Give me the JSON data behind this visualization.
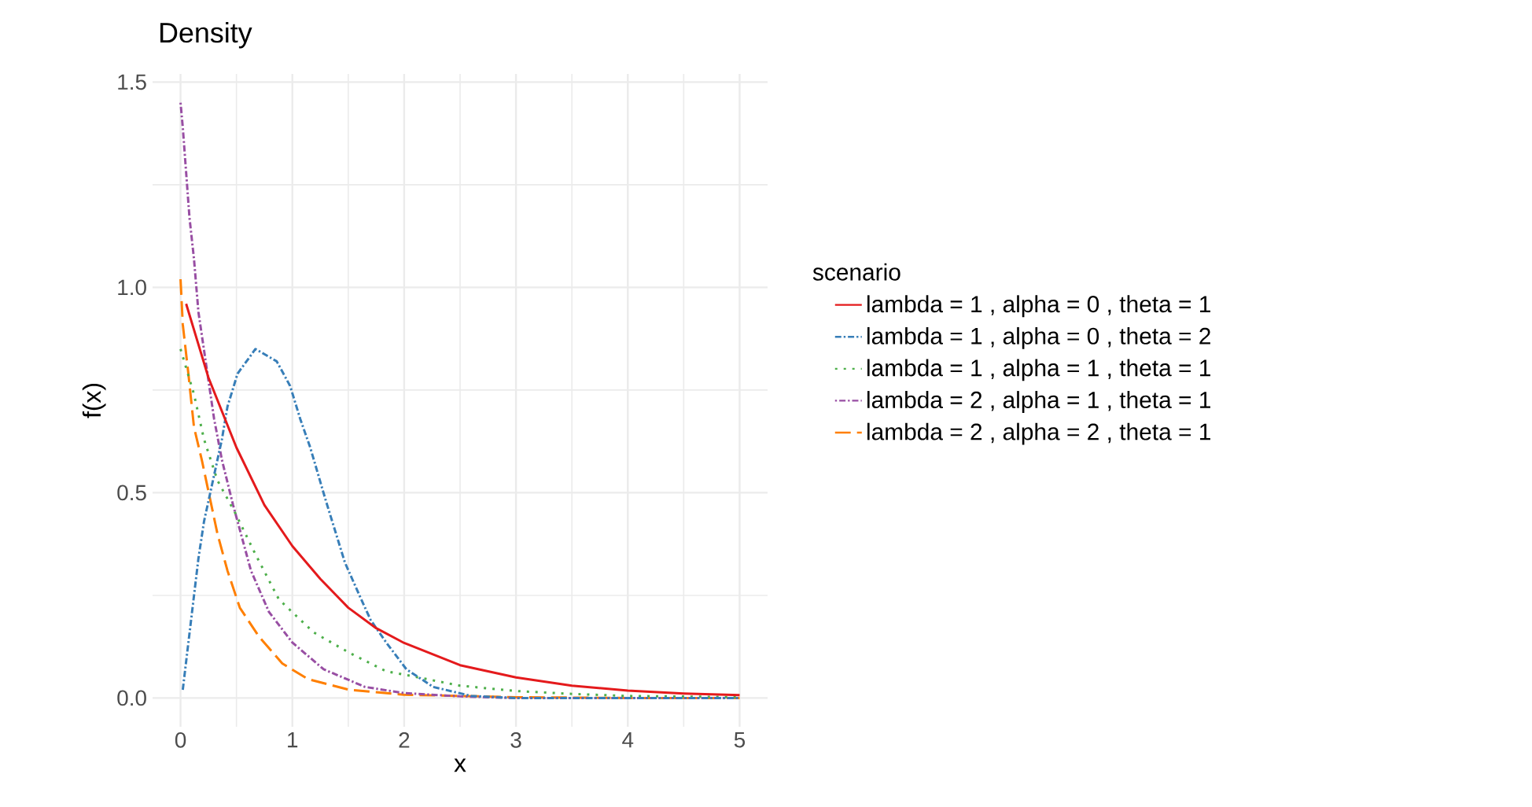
{
  "chart_data": {
    "type": "line",
    "title": "Density",
    "xlabel": "x",
    "ylabel": "f(x)",
    "legend_title": "scenario",
    "legend": "right",
    "grid": true,
    "xlim": [
      -0.25,
      5.25
    ],
    "ylim": [
      -0.07,
      1.52
    ],
    "xticks": [
      0,
      1,
      2,
      3,
      4,
      5
    ],
    "yticks": [
      {
        "value": 0,
        "label": "0.0"
      },
      {
        "value": 0.5,
        "label": "0.5"
      },
      {
        "value": 1,
        "label": "1.0"
      },
      {
        "value": 1.5,
        "label": "1.5"
      }
    ],
    "series": [
      {
        "name": "lambda = 1 , alpha = 0 , theta = 1",
        "color": "#e41a1c",
        "line_style": "solid",
        "x": [
          0.05,
          0.25,
          0.5,
          0.75,
          1,
          1.25,
          1.5,
          1.75,
          2,
          2.5,
          3,
          3.5,
          4,
          4.5,
          5
        ],
        "values": [
          0.96,
          0.78,
          0.61,
          0.47,
          0.37,
          0.29,
          0.22,
          0.17,
          0.134,
          0.08,
          0.05,
          0.03,
          0.018,
          0.011,
          0.007
        ]
      },
      {
        "name": "lambda = 1 , alpha = 0 , theta = 2",
        "color": "#377eb8",
        "line_style": "dashdot",
        "x": [
          0.02,
          0.09,
          0.16,
          0.21,
          0.37,
          0.42,
          0.51,
          0.67,
          0.86,
          0.98,
          1.07,
          1.16,
          1.3,
          1.47,
          1.6,
          1.7,
          1.84,
          2.02,
          2.26,
          2.6,
          3,
          4,
          5
        ],
        "values": [
          0.02,
          0.18,
          0.34,
          0.43,
          0.63,
          0.71,
          0.79,
          0.85,
          0.82,
          0.76,
          0.68,
          0.61,
          0.48,
          0.33,
          0.25,
          0.19,
          0.135,
          0.07,
          0.027,
          0.005,
          0,
          0,
          0
        ]
      },
      {
        "name": "lambda = 1 , alpha = 1 , theta = 1",
        "color": "#4daf4a",
        "line_style": "dotted",
        "x": [
          0,
          0.12,
          0.21,
          0.33,
          0.49,
          0.67,
          0.88,
          1.19,
          1.51,
          1.84,
          2,
          2.5,
          3,
          3.5,
          4,
          5
        ],
        "values": [
          0.85,
          0.74,
          0.63,
          0.53,
          0.45,
          0.35,
          0.24,
          0.16,
          0.11,
          0.065,
          0.057,
          0.03,
          0.017,
          0.01,
          0.005,
          0.002
        ]
      },
      {
        "name": "lambda = 2 , alpha = 1 , theta = 1",
        "color": "#984ea3",
        "line_style": "dotdash",
        "x": [
          0,
          0.02,
          0.05,
          0.08,
          0.12,
          0.16,
          0.23,
          0.3,
          0.37,
          0.47,
          0.63,
          0.79,
          1,
          1.28,
          1.65,
          2,
          2.5,
          3,
          4,
          5
        ],
        "values": [
          1.45,
          1.39,
          1.28,
          1.17,
          1.07,
          0.94,
          0.81,
          0.68,
          0.58,
          0.47,
          0.31,
          0.21,
          0.135,
          0.07,
          0.027,
          0.012,
          0.004,
          0,
          0,
          0
        ]
      },
      {
        "name": "lambda = 2 , alpha = 2 , theta = 1",
        "color": "#ff7f00",
        "line_style": "longdash",
        "x": [
          0,
          0.02,
          0.07,
          0.12,
          0.19,
          0.26,
          0.33,
          0.42,
          0.53,
          0.7,
          0.91,
          1.14,
          1.51,
          2,
          3,
          4,
          5
        ],
        "values": [
          1.02,
          0.91,
          0.79,
          0.66,
          0.58,
          0.49,
          0.4,
          0.31,
          0.22,
          0.15,
          0.084,
          0.046,
          0.02,
          0.008,
          0.002,
          0,
          0
        ]
      }
    ]
  }
}
